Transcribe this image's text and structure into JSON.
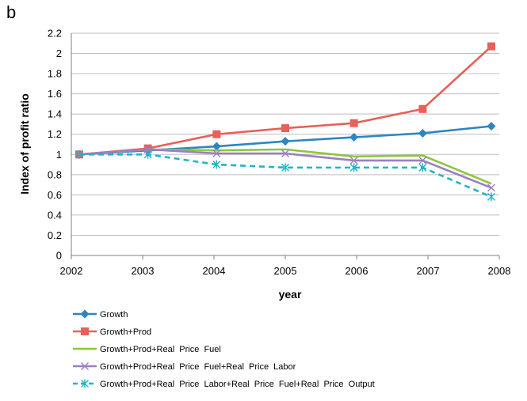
{
  "panel_label": "b",
  "chart_data": {
    "type": "line",
    "title": "",
    "xlabel": "year",
    "ylabel": "Index of profit ratio",
    "x": [
      2002,
      2003,
      2004,
      2005,
      2006,
      2007,
      2008
    ],
    "x_tick_labels": [
      "2002",
      "2003",
      "2004",
      "2005",
      "2006",
      "2007",
      "2008"
    ],
    "ylim": [
      0,
      2.2
    ],
    "y_ticks": [
      0,
      0.2,
      0.4,
      0.6,
      0.8,
      1,
      1.2,
      1.4,
      1.6,
      1.8,
      2,
      2.2
    ],
    "y_tick_labels": [
      "0",
      "0.2",
      "0.4",
      "0.6",
      "0.8",
      "1",
      "1.2",
      "1.4",
      "1.6",
      "1.8",
      "2",
      "2.2"
    ],
    "grid": "horizontal",
    "legend_position": "bottom",
    "series": [
      {
        "name": "Growth",
        "color": "#2e86c1",
        "marker": "diamond",
        "dash": "solid",
        "values": [
          1.0,
          1.04,
          1.08,
          1.13,
          1.17,
          1.21,
          1.28
        ]
      },
      {
        "name": "Growth+Prod",
        "color": "#e8605a",
        "marker": "square",
        "dash": "solid",
        "values": [
          1.0,
          1.06,
          1.2,
          1.26,
          1.31,
          1.45,
          2.07
        ]
      },
      {
        "name": "Growth+Prod+Real  Price  Fuel",
        "color": "#8cc63f",
        "marker": "none",
        "dash": "solid",
        "values": [
          1.0,
          1.05,
          1.04,
          1.05,
          0.98,
          0.99,
          0.71
        ]
      },
      {
        "name": "Growth+Prod+Real  Price  Fuel+Real  Price  Labor",
        "color": "#9b7fc2",
        "marker": "x",
        "dash": "solid",
        "values": [
          1.0,
          1.05,
          1.01,
          1.01,
          0.94,
          0.94,
          0.67
        ]
      },
      {
        "name": "Growth+Prod+Real  Price  Labor+Real  Price  Fuel+Real  Price  Output",
        "color": "#1fb5c8",
        "marker": "star",
        "dash": "dashed",
        "values": [
          1.0,
          1.0,
          0.9,
          0.87,
          0.87,
          0.87,
          0.58
        ]
      }
    ]
  }
}
